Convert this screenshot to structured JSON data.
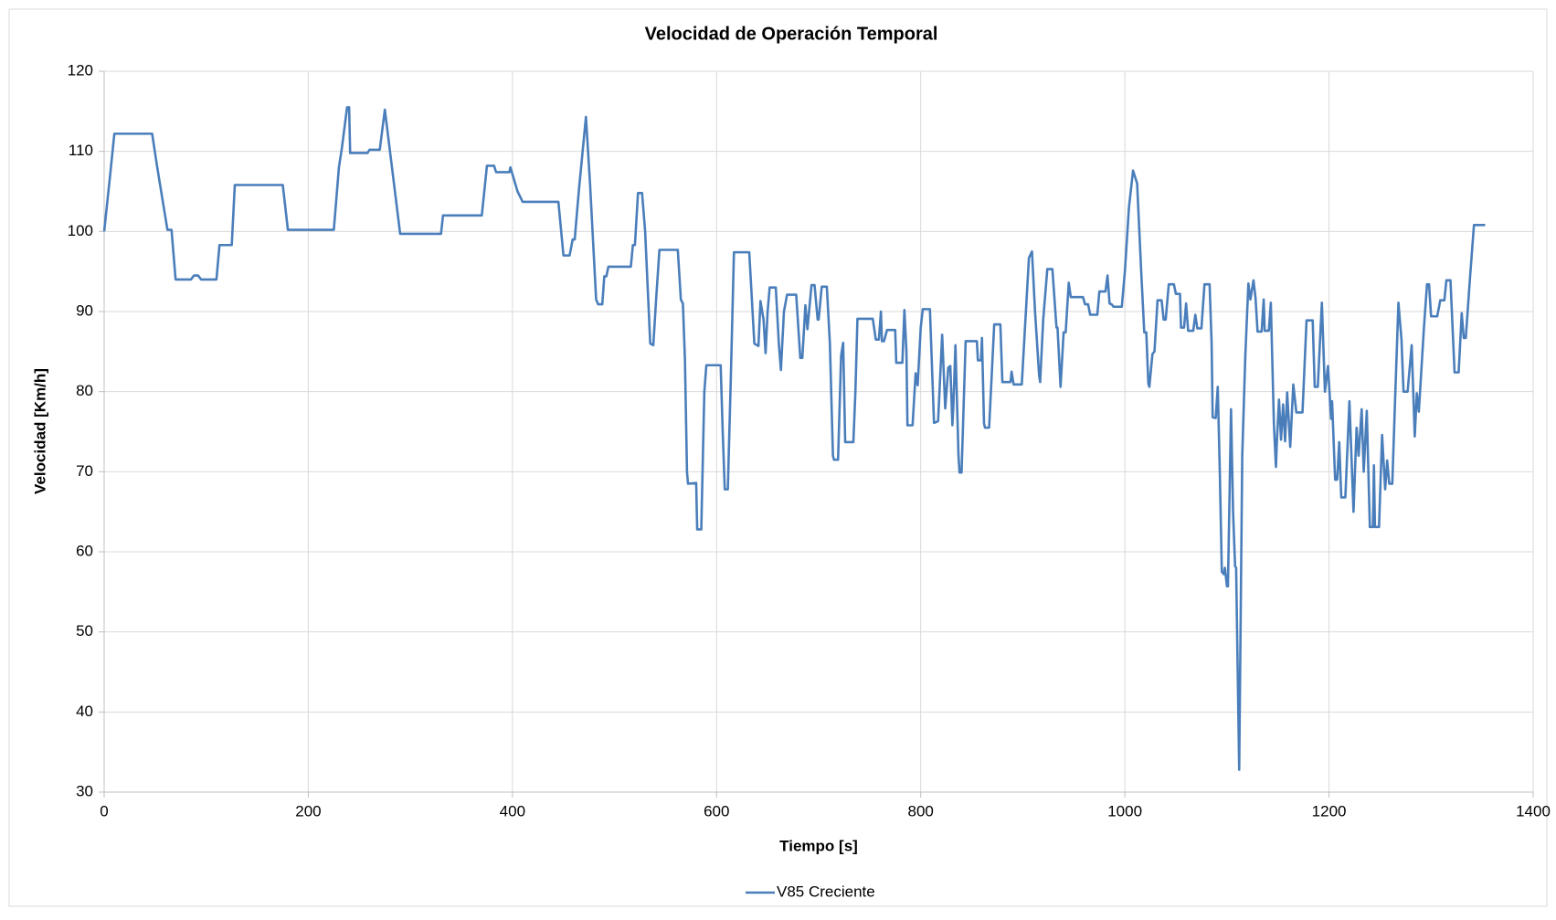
{
  "chart_data": {
    "type": "line",
    "title": "Velocidad de Operación Temporal",
    "x_label": "Tiempo [s]",
    "y_label": "Velocidad [Km/h]",
    "xlim": [
      0,
      1400
    ],
    "xticks": [
      0,
      200,
      400,
      600,
      800,
      1000,
      1200,
      1400
    ],
    "ylim": [
      30,
      120
    ],
    "yticks": [
      30,
      40,
      50,
      60,
      70,
      80,
      90,
      100,
      110,
      120
    ],
    "grid": true,
    "legend": "bottom",
    "x": [
      0,
      5,
      10,
      47,
      52,
      62,
      66,
      70,
      85,
      88,
      92,
      95,
      110,
      113,
      125,
      128,
      175,
      180,
      225,
      230,
      233,
      238,
      240,
      241,
      258,
      260,
      270,
      275,
      290,
      330,
      332,
      370,
      375,
      382,
      384,
      397,
      398,
      405,
      410,
      445,
      450,
      456,
      459,
      461,
      465,
      472,
      476,
      482,
      484,
      488,
      490,
      492,
      494,
      516,
      518,
      520,
      523,
      527,
      530,
      535,
      538,
      541,
      544,
      562,
      565,
      567,
      569,
      571,
      572,
      580,
      581,
      585,
      588,
      590,
      604,
      606,
      608,
      611,
      614,
      617,
      632,
      637,
      641,
      643,
      646,
      648,
      650,
      652,
      658,
      661,
      663,
      666,
      669,
      678,
      682,
      684,
      687,
      689,
      693,
      696,
      699,
      700,
      703,
      708,
      711,
      714,
      715,
      719,
      722,
      724,
      726,
      734,
      736,
      738,
      753,
      756,
      759,
      761,
      762,
      764,
      767,
      775,
      776,
      782,
      784,
      786,
      787,
      792,
      795,
      797,
      800,
      802,
      809,
      813,
      817,
      821,
      824,
      827,
      829,
      831,
      832,
      834,
      837,
      838,
      840,
      844,
      855,
      856,
      859,
      860,
      862,
      863,
      867,
      872,
      878,
      880,
      888,
      889,
      891,
      899,
      906,
      909,
      912,
      916,
      917,
      920,
      924,
      929,
      933,
      934,
      937,
      940,
      942,
      945,
      947,
      959,
      961,
      964,
      966,
      973,
      975,
      981,
      983,
      985,
      987,
      989,
      997,
      1000,
      1004,
      1008,
      1012,
      1016,
      1019,
      1021,
      1023,
      1024,
      1027,
      1029,
      1032,
      1036,
      1038,
      1040,
      1043,
      1048,
      1050,
      1054,
      1055,
      1058,
      1060,
      1062,
      1067,
      1069,
      1071,
      1075,
      1078,
      1083,
      1085,
      1086,
      1089,
      1091,
      1093,
      1095,
      1097,
      1098,
      1100,
      1101,
      1104,
      1106,
      1108,
      1109,
      1112,
      1115,
      1118,
      1121,
      1123,
      1126,
      1128,
      1130,
      1134,
      1136,
      1137,
      1141,
      1143,
      1146,
      1148,
      1149,
      1151,
      1153,
      1155,
      1157,
      1159,
      1162,
      1165,
      1168,
      1174,
      1178,
      1184,
      1186,
      1189,
      1193,
      1196,
      1199,
      1202,
      1203,
      1206,
      1208,
      1210,
      1212,
      1216,
      1220,
      1224,
      1227,
      1229,
      1232,
      1234,
      1237,
      1240,
      1243,
      1244,
      1245,
      1249,
      1252,
      1255,
      1257,
      1259,
      1262,
      1265,
      1268,
      1271,
      1273,
      1277,
      1281,
      1284,
      1286,
      1288,
      1293,
      1296,
      1298,
      1300,
      1306,
      1309,
      1313,
      1315,
      1319,
      1323,
      1327,
      1330,
      1332,
      1334,
      1338,
      1342,
      1353
    ],
    "series": [
      {
        "name": "V85 Creciente",
        "color": "#4a7ebb",
        "values": [
          100,
          106,
          112.2,
          112.2,
          108,
          100.2,
          100.2,
          94,
          94,
          94.5,
          94.5,
          94,
          94,
          98.3,
          98.3,
          105.8,
          105.8,
          100.2,
          100.2,
          108,
          110.5,
          115.5,
          115.5,
          109.8,
          109.8,
          110.2,
          110.2,
          115.2,
          99.7,
          99.7,
          102,
          102,
          108.2,
          108.2,
          107.4,
          107.4,
          108,
          105,
          103.7,
          103.7,
          97,
          97,
          99,
          99,
          105,
          114.3,
          106,
          91.5,
          90.9,
          90.9,
          94.4,
          94.4,
          95.6,
          95.6,
          98.3,
          98.3,
          104.8,
          104.8,
          100,
          86,
          85.8,
          92,
          97.7,
          97.7,
          91.5,
          91,
          84,
          70,
          68.5,
          68.6,
          62.8,
          62.8,
          80,
          83.3,
          83.3,
          75,
          67.8,
          67.8,
          82,
          97.4,
          97.4,
          86,
          85.7,
          91.3,
          89,
          84.8,
          90,
          93,
          93,
          86,
          82.7,
          90,
          92.1,
          92.1,
          84.2,
          84.2,
          90.8,
          87.8,
          93.3,
          93.3,
          89,
          89,
          93.1,
          93.1,
          86,
          72,
          71.5,
          71.5,
          84.5,
          86.1,
          73.7,
          73.7,
          80,
          89.1,
          89.1,
          86.5,
          86.5,
          90,
          86.3,
          86.3,
          87.7,
          87.7,
          83.6,
          83.6,
          90.2,
          85,
          75.8,
          75.8,
          82.3,
          80.8,
          88,
          90.3,
          90.3,
          76.1,
          76.3,
          87.1,
          77.9,
          83,
          83.2,
          75.8,
          78.3,
          85.8,
          72,
          69.9,
          69.9,
          86.3,
          86.3,
          83.9,
          83.9,
          86.7,
          76,
          75.5,
          75.5,
          88.4,
          88.4,
          81.2,
          81.2,
          82.5,
          80.9,
          80.9,
          96.7,
          97.5,
          90,
          82,
          81.2,
          89,
          95.3,
          95.3,
          88,
          88,
          80.6,
          87.4,
          87.4,
          93.6,
          91.8,
          91.8,
          90.9,
          90.9,
          89.6,
          89.6,
          92.5,
          92.5,
          94.5,
          91,
          90.9,
          90.6,
          90.6,
          95,
          103,
          107.6,
          106,
          95,
          87.4,
          87.4,
          81,
          80.6,
          84.7,
          85,
          91.4,
          91.4,
          89,
          89,
          93.4,
          93.4,
          92.2,
          92.2,
          88,
          88,
          91,
          87.6,
          87.6,
          89.6,
          87.9,
          87.9,
          93.4,
          93.4,
          86,
          76.8,
          76.7,
          80.6,
          70,
          57.5,
          57.2,
          58,
          55.7,
          55.7,
          77.8,
          65,
          58.2,
          58,
          32.8,
          72,
          84.5,
          93.5,
          91.5,
          93.9,
          91.7,
          87.5,
          87.5,
          91.5,
          87.6,
          87.6,
          91.1,
          76,
          70.6,
          74,
          79,
          74,
          78.4,
          73.8,
          79.9,
          73.1,
          80.9,
          77.4,
          77.4,
          88.9,
          88.9,
          80.6,
          80.6,
          91.1,
          80,
          83.2,
          76.6,
          78.8,
          69,
          69,
          73.7,
          66.8,
          66.8,
          78.8,
          65,
          75.5,
          72,
          77.8,
          70,
          77.6,
          63.1,
          63.1,
          70.8,
          63.1,
          63.1,
          74.6,
          67.8,
          71.4,
          68.5,
          68.5,
          80,
          91.1,
          86.5,
          80,
          80,
          85.8,
          74.4,
          79.8,
          77.5,
          88,
          93.4,
          93.4,
          89.4,
          89.4,
          91.4,
          91.4,
          93.9,
          93.9,
          82.4,
          82.4,
          89.8,
          86.7,
          86.7,
          94,
          100.8,
          100.8
        ]
      }
    ]
  }
}
